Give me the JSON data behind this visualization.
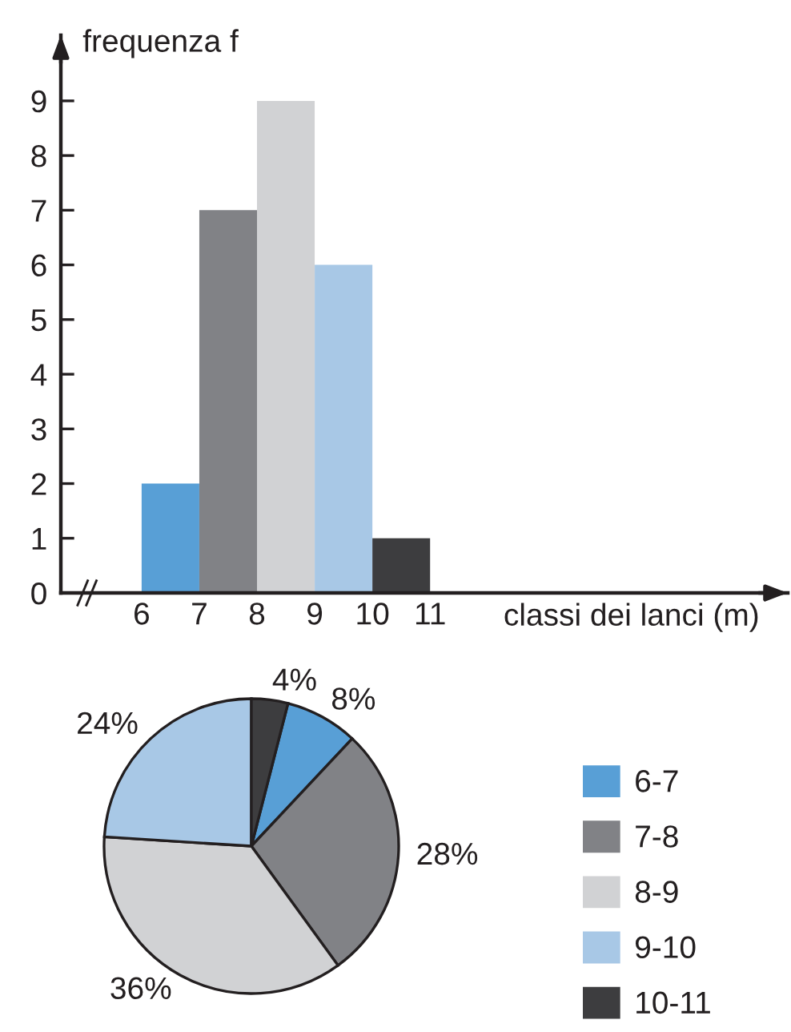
{
  "chart_data": [
    {
      "type": "histogram",
      "bins": [
        6,
        7,
        8,
        9,
        10,
        11
      ],
      "values": [
        2,
        7,
        9,
        6,
        1
      ],
      "colors": [
        "#589fd6",
        "#818286",
        "#d1d2d4",
        "#a8c8e6",
        "#3d3d3f"
      ],
      "xlabel": "classi dei lanci (m)",
      "ylabel": "frequenza f",
      "xlim": [
        4.6,
        17.2
      ],
      "ylim": [
        0,
        10.2
      ],
      "xticks": [
        6,
        7,
        8,
        9,
        10,
        11
      ],
      "yticks": [
        0,
        1,
        2,
        3,
        4,
        5,
        6,
        7,
        8,
        9
      ]
    },
    {
      "type": "pie",
      "categories": [
        "6-7",
        "7-8",
        "8-9",
        "9-10",
        "10-11"
      ],
      "values": [
        8,
        28,
        36,
        24,
        4
      ],
      "colors": [
        "#589fd6",
        "#818286",
        "#d1d2d4",
        "#a8c8e6",
        "#3d3d3f"
      ],
      "value_labels": [
        "8%",
        "28%",
        "36%",
        "24%",
        "4%"
      ],
      "legend": "right"
    }
  ]
}
